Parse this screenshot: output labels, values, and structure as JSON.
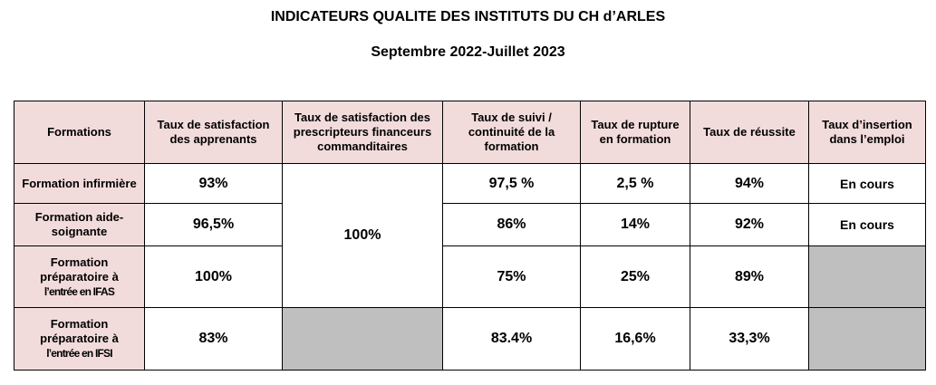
{
  "title": "INDICATEURS QUALITE DES INSTITUTS DU CH d’ARLES",
  "subtitle": "Septembre 2022-Juillet 2023",
  "headers": {
    "formations": "Formations",
    "satisfaction_apprenants": "Taux de satisfaction des apprenants",
    "satisfaction_prescripteurs": "Taux de satisfaction des prescripteurs financeurs commanditaires",
    "suivi": "Taux de suivi / continuité de la formation",
    "rupture": "Taux de rupture en formation",
    "reussite": "Taux de réussite",
    "insertion": "Taux d’insertion dans l’emploi"
  },
  "rows": [
    {
      "label": "Formation infirmière",
      "satisfaction_apprenants": "93%",
      "suivi": "97,5 %",
      "rupture": "2,5 %",
      "reussite": "94%",
      "insertion": "En cours"
    },
    {
      "label": "Formation aide-soignante",
      "satisfaction_apprenants": "96,5%",
      "suivi": "86%",
      "rupture": "14%",
      "reussite": "92%",
      "insertion": "En cours"
    },
    {
      "label_line1": "Formation préparatoire à",
      "label_line2": "l’entrée en IFAS",
      "satisfaction_apprenants": "100%",
      "suivi": "75%",
      "rupture": "25%",
      "reussite": "89%",
      "insertion": ""
    },
    {
      "label_line1": "Formation préparatoire à",
      "label_line2": "l’entrée en IFSI",
      "satisfaction_apprenants": "83%",
      "suivi": "83.4%",
      "rupture": "16,6%",
      "reussite": "33,3%",
      "insertion": ""
    }
  ],
  "merged_prescripteurs_value": "100%",
  "colors": {
    "header_bg": "#f2dcdb",
    "empty_cell": "#bfbfbf"
  }
}
